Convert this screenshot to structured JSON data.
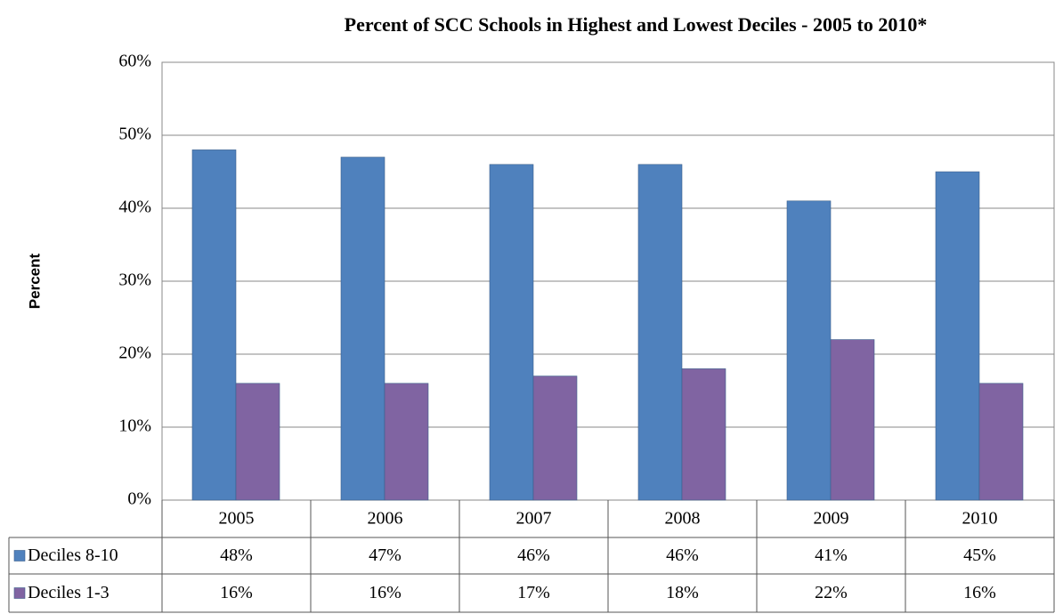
{
  "chart_data": {
    "type": "bar",
    "title": "Percent of SCC Schools in Highest and Lowest Deciles - 2005 to 2010*",
    "y_label": "Percent",
    "categories": [
      "2005",
      "2006",
      "2007",
      "2008",
      "2009",
      "2010"
    ],
    "series": [
      {
        "name": "Deciles 8-10",
        "color": "#4f81bd",
        "values": [
          48,
          47,
          46,
          46,
          41,
          45
        ],
        "value_labels": [
          "48%",
          "47%",
          "46%",
          "46%",
          "41%",
          "45%"
        ]
      },
      {
        "name": "Deciles 1-3",
        "color": "#8064a2",
        "values": [
          16,
          16,
          17,
          18,
          22,
          16
        ],
        "value_labels": [
          "16%",
          "16%",
          "17%",
          "18%",
          "22%",
          "16%"
        ]
      }
    ],
    "ylim": [
      0,
      60
    ],
    "yticks": [
      {
        "value": 0,
        "label": "0%"
      },
      {
        "value": 10,
        "label": "10%"
      },
      {
        "value": 20,
        "label": "20%"
      },
      {
        "value": 30,
        "label": "30%"
      },
      {
        "value": 40,
        "label": "40%"
      },
      {
        "value": 50,
        "label": "50%"
      },
      {
        "value": 60,
        "label": "60%"
      }
    ],
    "grid": true
  }
}
